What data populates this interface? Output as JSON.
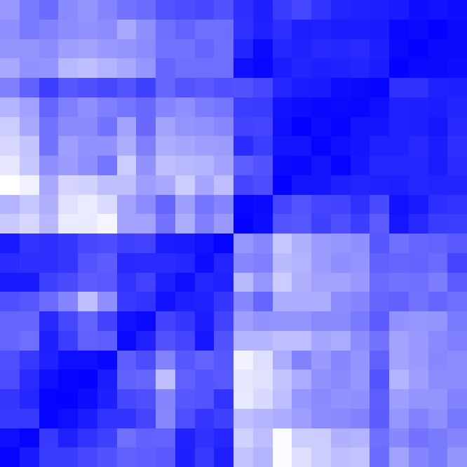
{
  "chart_data": {
    "type": "heatmap",
    "rows": 24,
    "cols": 24,
    "title": "",
    "xlabel": "",
    "ylabel": "",
    "colorscale": {
      "low": "#0000ff",
      "high": "#ffffff"
    },
    "values": [
      [
        0.6,
        0.48,
        0.42,
        0.54,
        0.58,
        0.52,
        0.45,
        0.42,
        0.33,
        0.3,
        0.28,
        0.32,
        0.18,
        0.12,
        0.23,
        0.28,
        0.2,
        0.14,
        0.13,
        0.12,
        0.1,
        0.05,
        0.07,
        0.05
      ],
      [
        0.56,
        0.48,
        0.51,
        0.55,
        0.57,
        0.55,
        0.66,
        0.56,
        0.44,
        0.39,
        0.43,
        0.43,
        0.19,
        0.13,
        0.18,
        0.12,
        0.13,
        0.11,
        0.11,
        0.1,
        0.03,
        0.04,
        0.01,
        0.04
      ],
      [
        0.58,
        0.58,
        0.55,
        0.62,
        0.64,
        0.6,
        0.58,
        0.55,
        0.45,
        0.45,
        0.4,
        0.44,
        0.14,
        0.04,
        0.15,
        0.13,
        0.16,
        0.15,
        0.17,
        0.12,
        0.04,
        0.01,
        0.04,
        0.04
      ],
      [
        0.66,
        0.57,
        0.58,
        0.72,
        0.75,
        0.7,
        0.66,
        0.59,
        0.4,
        0.44,
        0.43,
        0.43,
        0.06,
        0.03,
        0.11,
        0.14,
        0.12,
        0.13,
        0.14,
        0.11,
        0.01,
        0.04,
        0.04,
        0.05
      ],
      [
        0.5,
        0.38,
        0.24,
        0.34,
        0.31,
        0.28,
        0.33,
        0.25,
        0.4,
        0.33,
        0.35,
        0.31,
        0.32,
        0.28,
        0.15,
        0.11,
        0.1,
        0.05,
        0.04,
        0.02,
        0.19,
        0.19,
        0.13,
        0.12
      ],
      [
        0.7,
        0.63,
        0.4,
        0.5,
        0.56,
        0.5,
        0.46,
        0.41,
        0.52,
        0.56,
        0.49,
        0.46,
        0.24,
        0.23,
        0.07,
        0.05,
        0.03,
        0.04,
        0.03,
        0.06,
        0.13,
        0.12,
        0.11,
        0.14
      ],
      [
        0.8,
        0.66,
        0.45,
        0.54,
        0.54,
        0.45,
        0.64,
        0.41,
        0.64,
        0.58,
        0.57,
        0.53,
        0.26,
        0.27,
        0.06,
        0.01,
        0.05,
        0.02,
        0.08,
        0.08,
        0.13,
        0.12,
        0.09,
        0.16
      ],
      [
        0.84,
        0.77,
        0.45,
        0.62,
        0.57,
        0.57,
        0.68,
        0.5,
        0.68,
        0.65,
        0.62,
        0.61,
        0.17,
        0.24,
        0.08,
        0.08,
        0.02,
        0.06,
        0.08,
        0.13,
        0.13,
        0.16,
        0.11,
        0.18
      ],
      [
        0.9,
        0.78,
        0.56,
        0.61,
        0.56,
        0.46,
        0.8,
        0.57,
        0.74,
        0.72,
        0.71,
        0.64,
        0.37,
        0.32,
        0.04,
        0.03,
        0.08,
        0.02,
        0.09,
        0.15,
        0.15,
        0.15,
        0.11,
        0.17
      ],
      [
        1.0,
        0.94,
        0.66,
        0.83,
        0.82,
        0.75,
        0.75,
        0.62,
        0.66,
        0.8,
        0.65,
        0.74,
        0.27,
        0.3,
        0.01,
        0.08,
        0.08,
        0.12,
        0.14,
        0.13,
        0.12,
        0.15,
        0.14,
        0.14
      ],
      [
        0.7,
        0.78,
        0.69,
        0.88,
        0.92,
        0.86,
        0.64,
        0.55,
        0.4,
        0.62,
        0.46,
        0.52,
        0.03,
        0.04,
        0.27,
        0.33,
        0.27,
        0.26,
        0.19,
        0.29,
        0.07,
        0.1,
        0.18,
        0.2
      ],
      [
        0.79,
        0.84,
        0.72,
        0.92,
        0.92,
        0.96,
        0.64,
        0.64,
        0.45,
        0.68,
        0.5,
        0.6,
        0.01,
        0.05,
        0.33,
        0.34,
        0.25,
        0.31,
        0.24,
        0.36,
        0.09,
        0.16,
        0.23,
        0.24
      ],
      [
        0.1,
        0.2,
        0.18,
        0.21,
        0.28,
        0.3,
        0.25,
        0.26,
        0.11,
        0.1,
        0.07,
        0.02,
        0.59,
        0.53,
        0.78,
        0.69,
        0.61,
        0.59,
        0.56,
        0.34,
        0.44,
        0.4,
        0.39,
        0.35
      ],
      [
        0.17,
        0.18,
        0.18,
        0.21,
        0.33,
        0.36,
        0.16,
        0.17,
        0.17,
        0.15,
        0.05,
        0.14,
        0.53,
        0.5,
        0.73,
        0.7,
        0.61,
        0.56,
        0.58,
        0.38,
        0.4,
        0.39,
        0.42,
        0.27
      ],
      [
        0.1,
        0.1,
        0.25,
        0.29,
        0.36,
        0.35,
        0.2,
        0.26,
        0.12,
        0.06,
        0.15,
        0.13,
        0.73,
        0.59,
        0.8,
        0.69,
        0.64,
        0.64,
        0.6,
        0.42,
        0.45,
        0.43,
        0.49,
        0.36
      ],
      [
        0.31,
        0.34,
        0.42,
        0.52,
        0.75,
        0.56,
        0.22,
        0.2,
        0.07,
        0.12,
        0.13,
        0.21,
        0.53,
        0.4,
        0.68,
        0.67,
        0.68,
        0.55,
        0.52,
        0.4,
        0.38,
        0.45,
        0.4,
        0.43
      ],
      [
        0.4,
        0.4,
        0.16,
        0.28,
        0.39,
        0.26,
        0.07,
        0.04,
        0.26,
        0.21,
        0.11,
        0.26,
        0.62,
        0.57,
        0.58,
        0.58,
        0.54,
        0.54,
        0.48,
        0.36,
        0.57,
        0.59,
        0.58,
        0.48
      ],
      [
        0.4,
        0.43,
        0.12,
        0.24,
        0.38,
        0.37,
        0.04,
        0.13,
        0.32,
        0.27,
        0.09,
        0.32,
        0.7,
        0.71,
        0.75,
        0.74,
        0.65,
        0.67,
        0.55,
        0.45,
        0.64,
        0.6,
        0.54,
        0.5
      ],
      [
        0.31,
        0.22,
        0.13,
        0.06,
        0.06,
        0.03,
        0.37,
        0.3,
        0.51,
        0.34,
        0.39,
        0.34,
        0.95,
        0.87,
        0.67,
        0.51,
        0.6,
        0.53,
        0.58,
        0.38,
        0.64,
        0.6,
        0.53,
        0.55
      ],
      [
        0.3,
        0.17,
        0.06,
        0.02,
        0.01,
        0.11,
        0.38,
        0.4,
        0.75,
        0.38,
        0.33,
        0.35,
        0.9,
        0.88,
        0.77,
        0.67,
        0.57,
        0.54,
        0.59,
        0.33,
        0.7,
        0.62,
        0.55,
        0.55
      ],
      [
        0.21,
        0.15,
        0.02,
        0.01,
        0.05,
        0.12,
        0.28,
        0.31,
        0.52,
        0.34,
        0.33,
        0.2,
        0.91,
        0.85,
        0.74,
        0.59,
        0.54,
        0.57,
        0.56,
        0.37,
        0.62,
        0.58,
        0.58,
        0.51
      ],
      [
        0.22,
        0.22,
        0.02,
        0.06,
        0.11,
        0.2,
        0.2,
        0.27,
        0.53,
        0.31,
        0.21,
        0.25,
        0.74,
        0.71,
        0.67,
        0.62,
        0.55,
        0.54,
        0.51,
        0.36,
        0.59,
        0.51,
        0.56,
        0.47
      ],
      [
        0.06,
        0.02,
        0.22,
        0.13,
        0.2,
        0.25,
        0.44,
        0.38,
        0.39,
        0.13,
        0.19,
        0.15,
        0.82,
        0.74,
        0.98,
        0.8,
        0.8,
        0.69,
        0.7,
        0.44,
        0.53,
        0.45,
        0.48,
        0.52
      ],
      [
        0.02,
        0.1,
        0.23,
        0.23,
        0.28,
        0.32,
        0.38,
        0.37,
        0.35,
        0.12,
        0.22,
        0.12,
        0.76,
        0.7,
        0.98,
        0.87,
        0.8,
        0.74,
        0.76,
        0.42,
        0.63,
        0.52,
        0.48,
        0.58
      ]
    ]
  }
}
